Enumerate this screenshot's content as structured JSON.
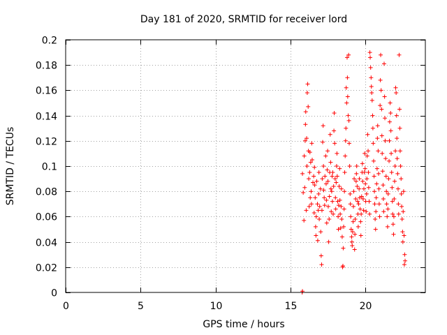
{
  "chart_data": {
    "type": "scatter",
    "title": "Day 181 of 2020, SRMTID for receiver lord",
    "xlabel": "GPS time / hours",
    "ylabel": "SRMTID / TECUs",
    "xlim": [
      0,
      24
    ],
    "ylim": [
      0,
      0.2
    ],
    "xticks": [
      0,
      5,
      10,
      15,
      20
    ],
    "xtick_labels": [
      "0",
      "5",
      "10",
      "15",
      "20"
    ],
    "yticks": [
      0,
      0.02,
      0.04,
      0.06,
      0.08,
      0.1,
      0.12,
      0.14,
      0.16,
      0.18,
      0.2
    ],
    "ytick_labels": [
      "0",
      "0.02",
      "0.04",
      "0.06",
      "0.08",
      "0.1",
      "0.12",
      "0.14",
      "0.16",
      "0.18",
      "0.2"
    ],
    "grid": true,
    "marker": "+",
    "color": "#ff0000",
    "series": [
      {
        "name": "SRMTID",
        "points": [
          [
            15.78,
            0.0
          ],
          [
            15.8,
            0.001
          ],
          [
            15.8,
            0.094
          ],
          [
            15.85,
            0.079
          ],
          [
            15.9,
            0.057
          ],
          [
            15.92,
            0.108
          ],
          [
            15.95,
            0.083
          ],
          [
            15.98,
            0.12
          ],
          [
            16.0,
            0.133
          ],
          [
            16.02,
            0.143
          ],
          [
            16.05,
            0.065
          ],
          [
            16.08,
            0.122
          ],
          [
            16.1,
            0.1
          ],
          [
            16.12,
            0.158
          ],
          [
            16.15,
            0.165
          ],
          [
            16.18,
            0.147
          ],
          [
            16.2,
            0.112
          ],
          [
            16.22,
            0.09
          ],
          [
            16.25,
            0.068
          ],
          [
            16.28,
            0.095
          ],
          [
            16.3,
            0.111
          ],
          [
            16.32,
            0.075
          ],
          [
            16.35,
            0.103
          ],
          [
            16.38,
            0.08
          ],
          [
            16.4,
            0.07
          ],
          [
            16.42,
            0.118
          ],
          [
            16.45,
            0.105
          ],
          [
            16.5,
            0.087
          ],
          [
            16.55,
            0.092
          ],
          [
            16.58,
            0.063
          ],
          [
            16.6,
            0.099
          ],
          [
            16.62,
            0.085
          ],
          [
            16.65,
            0.075
          ],
          [
            16.68,
            0.052
          ],
          [
            16.7,
            0.045
          ],
          [
            16.72,
            0.06
          ],
          [
            16.75,
            0.088
          ],
          [
            16.8,
            0.07
          ],
          [
            16.82,
            0.041
          ],
          [
            16.85,
            0.065
          ],
          [
            16.88,
            0.078
          ],
          [
            16.9,
            0.095
          ],
          [
            16.92,
            0.058
          ],
          [
            16.95,
            0.068
          ],
          [
            17.0,
            0.082
          ],
          [
            17.02,
            0.048
          ],
          [
            17.05,
            0.029
          ],
          [
            17.08,
            0.022
          ],
          [
            17.1,
            0.065
          ],
          [
            17.12,
            0.09
          ],
          [
            17.15,
            0.119
          ],
          [
            17.18,
            0.132
          ],
          [
            17.2,
            0.1
          ],
          [
            17.22,
            0.081
          ],
          [
            17.25,
            0.075
          ],
          [
            17.28,
            0.069
          ],
          [
            17.3,
            0.092
          ],
          [
            17.35,
            0.108
          ],
          [
            17.38,
            0.086
          ],
          [
            17.4,
            0.073
          ],
          [
            17.42,
            0.055
          ],
          [
            17.45,
            0.097
          ],
          [
            17.48,
            0.112
          ],
          [
            17.5,
            0.088
          ],
          [
            17.52,
            0.068
          ],
          [
            17.55,
            0.04
          ],
          [
            17.58,
            0.058
          ],
          [
            17.6,
            0.076
          ],
          [
            17.62,
            0.095
          ],
          [
            17.65,
            0.125
          ],
          [
            17.68,
            0.103
          ],
          [
            17.7,
            0.082
          ],
          [
            17.72,
            0.064
          ],
          [
            17.75,
            0.08
          ],
          [
            17.78,
            0.092
          ],
          [
            17.8,
            0.072
          ],
          [
            17.82,
            0.095
          ],
          [
            17.85,
            0.062
          ],
          [
            17.88,
            0.084
          ],
          [
            17.9,
            0.128
          ],
          [
            17.92,
            0.142
          ],
          [
            17.95,
            0.118
          ],
          [
            17.98,
            0.09
          ],
          [
            18.0,
            0.075
          ],
          [
            18.02,
            0.066
          ],
          [
            18.05,
            0.087
          ],
          [
            18.08,
            0.1
          ],
          [
            18.1,
            0.11
          ],
          [
            18.12,
            0.092
          ],
          [
            18.15,
            0.072
          ],
          [
            18.18,
            0.06
          ],
          [
            18.2,
            0.05
          ],
          [
            18.22,
            0.069
          ],
          [
            18.25,
            0.084
          ],
          [
            18.28,
            0.098
          ],
          [
            18.3,
            0.073
          ],
          [
            18.32,
            0.062
          ],
          [
            18.35,
            0.051
          ],
          [
            18.38,
            0.068
          ],
          [
            18.4,
            0.082
          ],
          [
            18.42,
            0.058
          ],
          [
            18.45,
            0.044
          ],
          [
            18.48,
            0.02
          ],
          [
            18.5,
            0.021
          ],
          [
            18.52,
            0.035
          ],
          [
            18.55,
            0.052
          ],
          [
            18.58,
            0.066
          ],
          [
            18.6,
            0.08
          ],
          [
            18.62,
            0.095
          ],
          [
            18.65,
            0.108
          ],
          [
            18.68,
            0.12
          ],
          [
            18.7,
            0.13
          ],
          [
            18.72,
            0.162
          ],
          [
            18.75,
            0.15
          ],
          [
            18.78,
            0.186
          ],
          [
            18.8,
            0.17
          ],
          [
            18.82,
            0.155
          ],
          [
            18.85,
            0.14
          ],
          [
            18.88,
            0.188
          ],
          [
            18.9,
            0.136
          ],
          [
            18.92,
            0.118
          ],
          [
            18.95,
            0.1
          ],
          [
            18.98,
            0.078
          ],
          [
            19.0,
            0.07
          ],
          [
            19.02,
            0.06
          ],
          [
            19.05,
            0.05
          ],
          [
            19.08,
            0.044
          ],
          [
            19.1,
            0.04
          ],
          [
            19.12,
            0.037
          ],
          [
            19.15,
            0.048
          ],
          [
            19.18,
            0.056
          ],
          [
            19.2,
            0.068
          ],
          [
            19.22,
            0.08
          ],
          [
            19.25,
            0.09
          ],
          [
            19.28,
            0.034
          ],
          [
            19.3,
            0.046
          ],
          [
            19.32,
            0.058
          ],
          [
            19.35,
            0.074
          ],
          [
            19.38,
            0.088
          ],
          [
            19.4,
            0.094
          ],
          [
            19.42,
            0.1
          ],
          [
            19.45,
            0.084
          ],
          [
            19.48,
            0.072
          ],
          [
            19.5,
            0.062
          ],
          [
            19.52,
            0.052
          ],
          [
            19.55,
            0.07
          ],
          [
            19.58,
            0.082
          ],
          [
            19.6,
            0.09
          ],
          [
            19.62,
            0.075
          ],
          [
            19.65,
            0.066
          ],
          [
            19.68,
            0.056
          ],
          [
            19.7,
            0.045
          ],
          [
            19.72,
            0.062
          ],
          [
            19.75,
            0.076
          ],
          [
            19.78,
            0.095
          ],
          [
            19.8,
            0.102
          ],
          [
            19.82,
            0.088
          ],
          [
            19.85,
            0.074
          ],
          [
            19.88,
            0.065
          ],
          [
            19.9,
            0.082
          ],
          [
            19.92,
            0.095
          ],
          [
            19.95,
            0.11
          ],
          [
            19.98,
            0.098
          ],
          [
            20.0,
            0.086
          ],
          [
            20.02,
            0.072
          ],
          [
            20.05,
            0.064
          ],
          [
            20.08,
            0.078
          ],
          [
            20.1,
            0.09
          ],
          [
            20.12,
            0.108
          ],
          [
            20.15,
            0.125
          ],
          [
            20.18,
            0.112
          ],
          [
            20.2,
            0.095
          ],
          [
            20.22,
            0.083
          ],
          [
            20.25,
            0.072
          ],
          [
            20.28,
            0.062
          ],
          [
            20.3,
            0.19
          ],
          [
            20.32,
            0.186
          ],
          [
            20.35,
            0.178
          ],
          [
            20.38,
            0.17
          ],
          [
            20.4,
            0.163
          ],
          [
            20.42,
            0.158
          ],
          [
            20.45,
            0.152
          ],
          [
            20.48,
            0.14
          ],
          [
            20.5,
            0.13
          ],
          [
            20.52,
            0.118
          ],
          [
            20.55,
            0.104
          ],
          [
            20.58,
            0.092
          ],
          [
            20.6,
            0.08
          ],
          [
            20.62,
            0.07
          ],
          [
            20.65,
            0.058
          ],
          [
            20.68,
            0.05
          ],
          [
            20.7,
            0.064
          ],
          [
            20.72,
            0.075
          ],
          [
            20.75,
            0.086
          ],
          [
            20.78,
            0.098
          ],
          [
            20.8,
            0.122
          ],
          [
            20.82,
            0.132
          ],
          [
            20.85,
            0.112
          ],
          [
            20.88,
            0.094
          ],
          [
            20.9,
            0.082
          ],
          [
            20.92,
            0.07
          ],
          [
            20.95,
            0.06
          ],
          [
            20.98,
            0.148
          ],
          [
            21.0,
            0.168
          ],
          [
            21.02,
            0.188
          ],
          [
            21.05,
            0.16
          ],
          [
            21.08,
            0.145
          ],
          [
            21.1,
            0.124
          ],
          [
            21.12,
            0.11
          ],
          [
            21.15,
            0.096
          ],
          [
            21.18,
            0.085
          ],
          [
            21.2,
            0.074
          ],
          [
            21.22,
            0.064
          ],
          [
            21.25,
            0.181
          ],
          [
            21.28,
            0.155
          ],
          [
            21.3,
            0.138
          ],
          [
            21.32,
            0.12
          ],
          [
            21.35,
            0.106
          ],
          [
            21.38,
            0.092
          ],
          [
            21.4,
            0.08
          ],
          [
            21.42,
            0.07
          ],
          [
            21.45,
            0.06
          ],
          [
            21.48,
            0.052
          ],
          [
            21.5,
            0.066
          ],
          [
            21.52,
            0.078
          ],
          [
            21.55,
            0.09
          ],
          [
            21.58,
            0.104
          ],
          [
            21.6,
            0.12
          ],
          [
            21.62,
            0.135
          ],
          [
            21.65,
            0.15
          ],
          [
            21.68,
            0.142
          ],
          [
            21.7,
            0.128
          ],
          [
            21.72,
            0.11
          ],
          [
            21.75,
            0.095
          ],
          [
            21.78,
            0.083
          ],
          [
            21.8,
            0.072
          ],
          [
            21.82,
            0.062
          ],
          [
            21.85,
            0.054
          ],
          [
            21.88,
            0.046
          ],
          [
            21.9,
            0.06
          ],
          [
            21.92,
            0.074
          ],
          [
            21.95,
            0.088
          ],
          [
            21.98,
            0.1
          ],
          [
            22.0,
            0.112
          ],
          [
            22.02,
            0.162
          ],
          [
            22.05,
            0.158
          ],
          [
            22.08,
            0.14
          ],
          [
            22.1,
            0.122
          ],
          [
            22.12,
            0.106
          ],
          [
            22.15,
            0.094
          ],
          [
            22.18,
            0.082
          ],
          [
            22.2,
            0.07
          ],
          [
            22.22,
            0.062
          ],
          [
            22.25,
            0.188
          ],
          [
            22.28,
            0.145
          ],
          [
            22.3,
            0.13
          ],
          [
            22.32,
            0.112
          ],
          [
            22.35,
            0.1
          ],
          [
            22.38,
            0.09
          ],
          [
            22.4,
            0.078
          ],
          [
            22.42,
            0.068
          ],
          [
            22.45,
            0.058
          ],
          [
            22.48,
            0.048
          ],
          [
            22.5,
            0.04
          ],
          [
            22.52,
            0.064
          ],
          [
            22.55,
            0.08
          ],
          [
            22.58,
            0.045
          ],
          [
            22.6,
            0.022
          ],
          [
            22.62,
            0.03
          ],
          [
            22.65,
            0.025
          ]
        ]
      }
    ]
  }
}
